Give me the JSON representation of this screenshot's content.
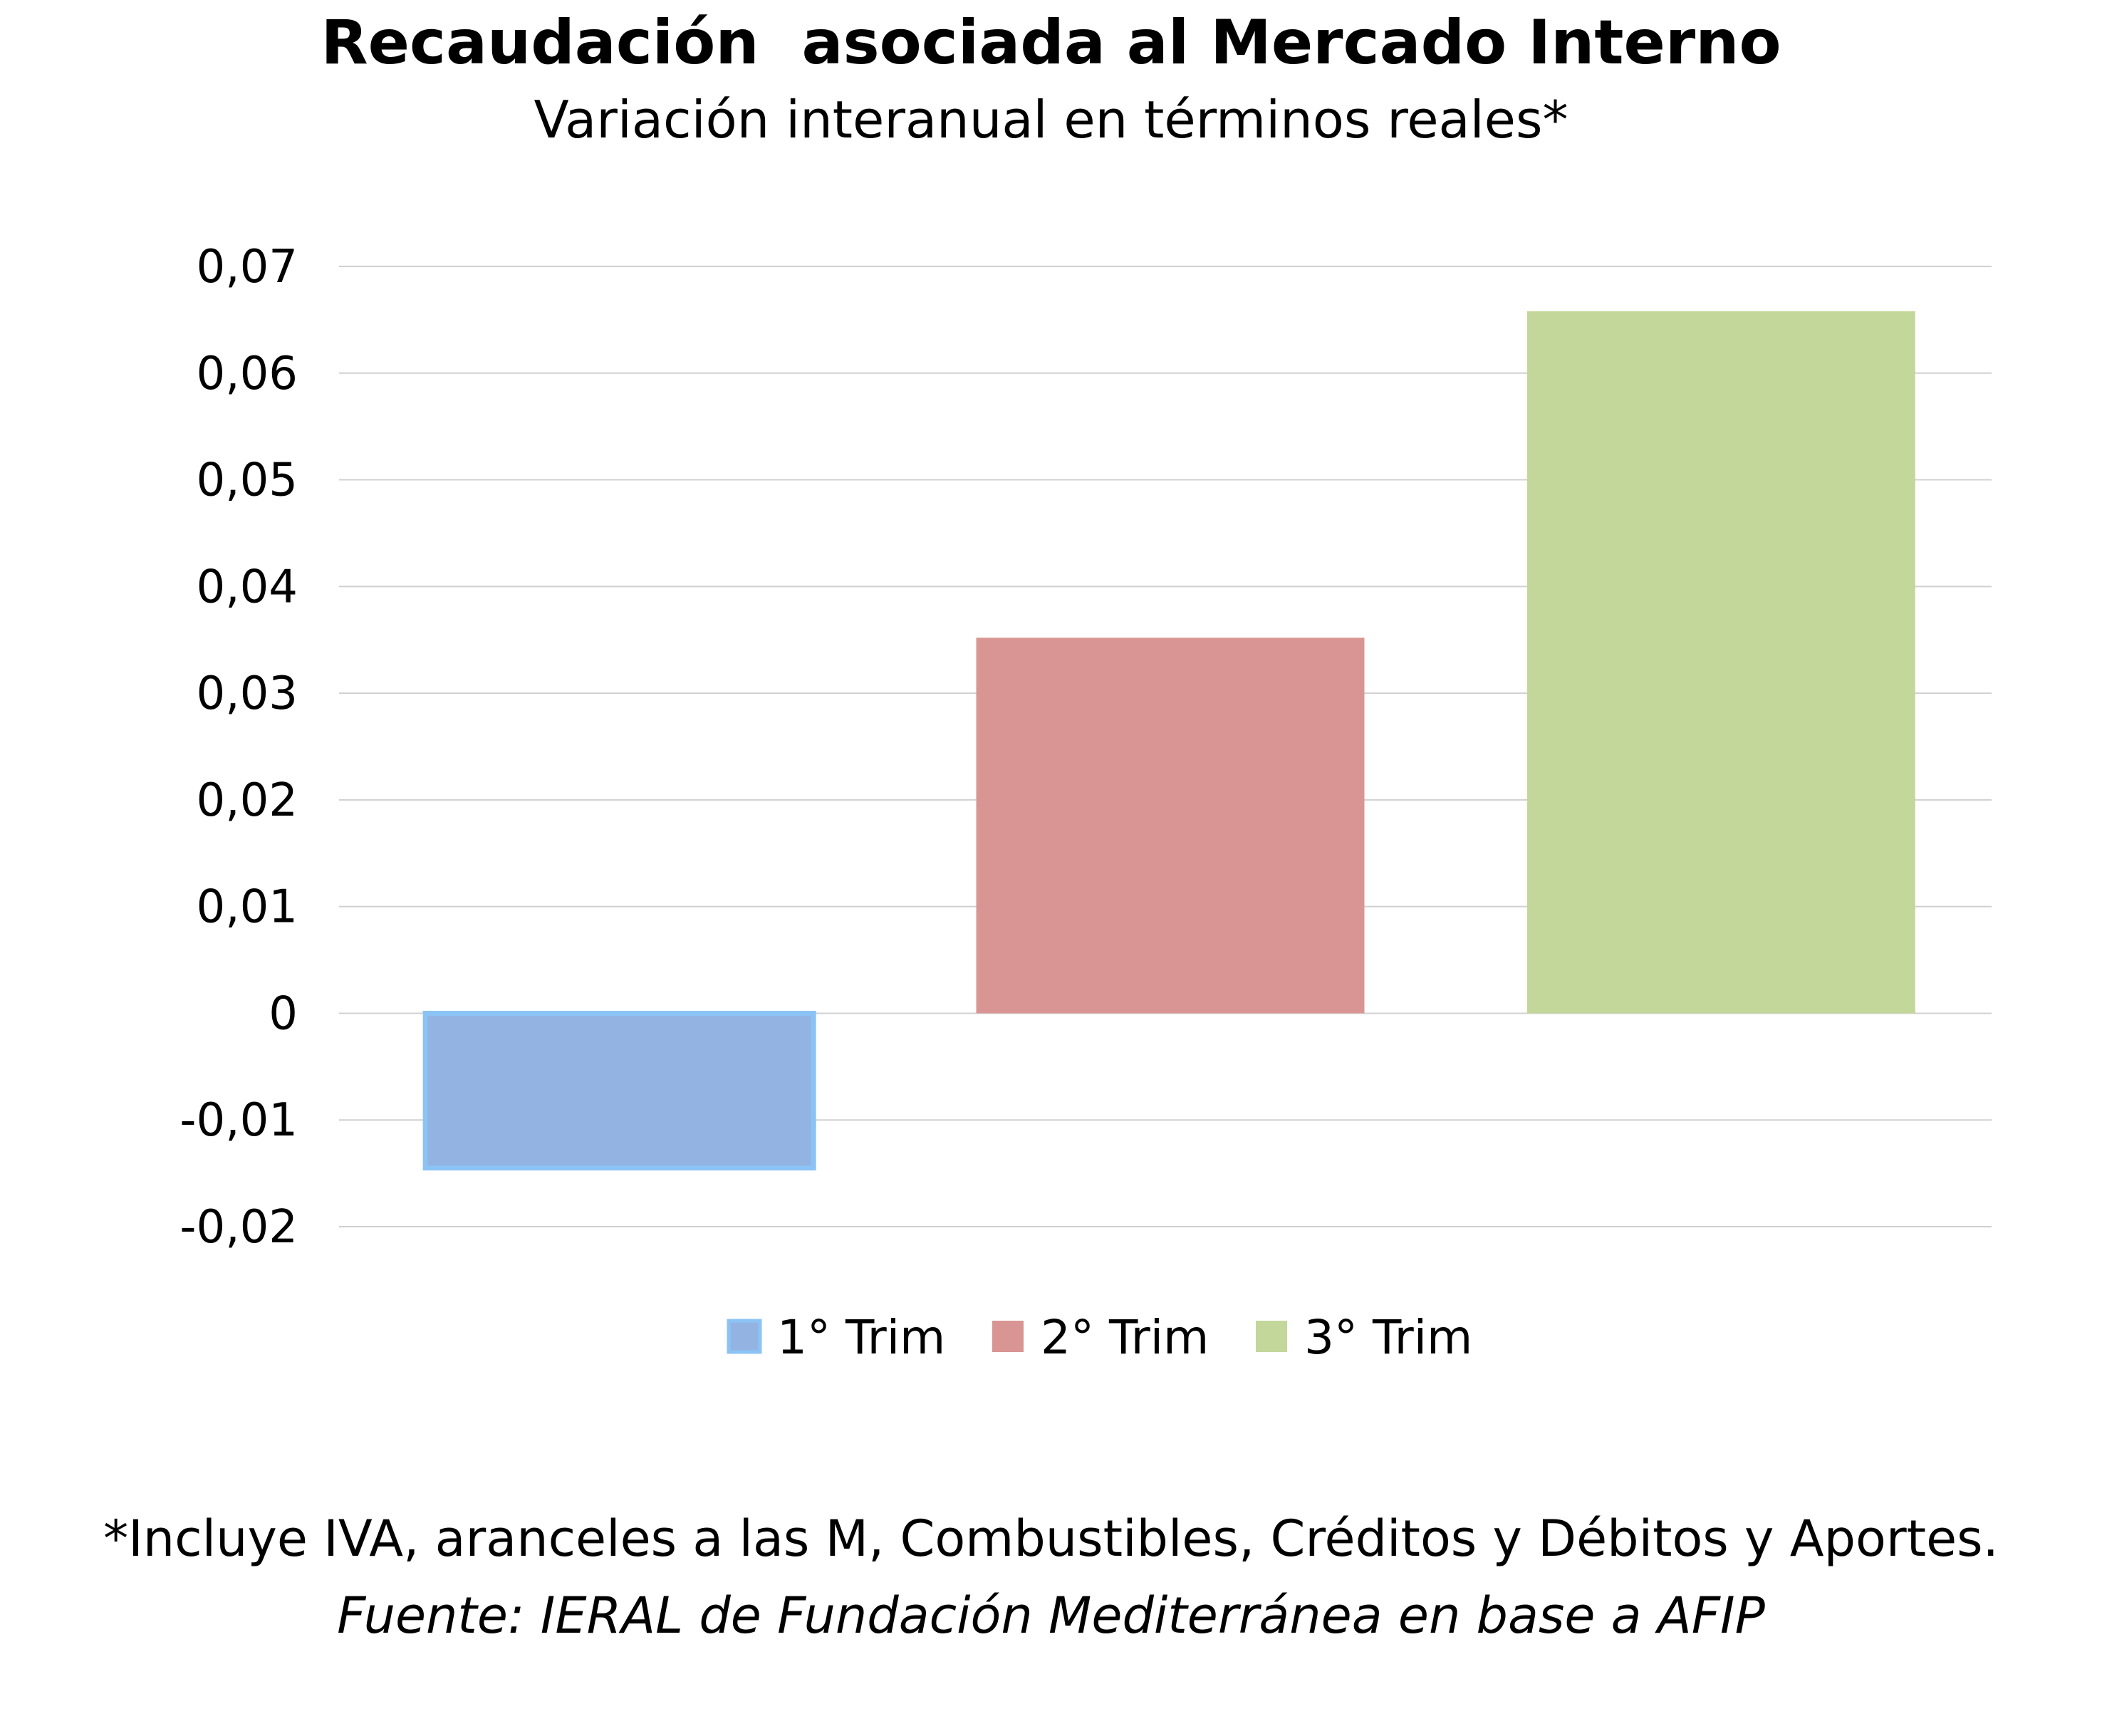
{
  "chart_data": {
    "type": "bar",
    "title": "Recaudación  asociada al Mercado Interno",
    "subtitle": "Variación interanual en términos reales*",
    "categories": [
      "1° Trim",
      "2° Trim",
      "3° Trim"
    ],
    "values": [
      -0.0145,
      0.0352,
      0.0658
    ],
    "colors": [
      "#93b4e3",
      "#d99594",
      "#c4d79b"
    ],
    "bar_borders": [
      "#8cc3f5",
      null,
      null
    ],
    "ylim": [
      -0.02,
      0.07
    ],
    "yticks": [
      0.07,
      0.06,
      0.05,
      0.04,
      0.03,
      0.02,
      0.01,
      0,
      -0.01,
      -0.02
    ],
    "ytick_labels": [
      "0,07",
      "0,06",
      "0,05",
      "0,04",
      "0,03",
      "0,02",
      "0,01",
      "0",
      "-0,01",
      "-0,02"
    ],
    "grid": true,
    "legend": "bottom",
    "xlabel": "",
    "ylabel": ""
  },
  "notes": {
    "footnote": "*Incluye IVA, aranceles a las M, Combustibles, Créditos y Débitos y Aportes.",
    "source": "Fuente: IERAL de Fundación Mediterránea en base a AFIP"
  }
}
